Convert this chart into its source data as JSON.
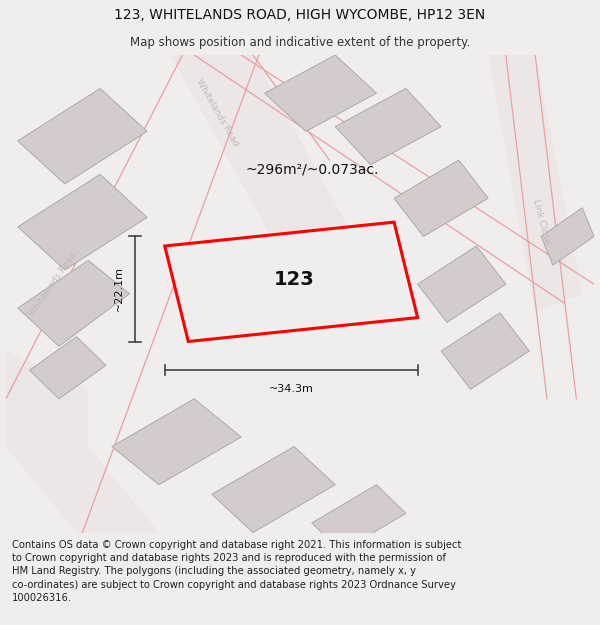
{
  "title": "123, WHITELANDS ROAD, HIGH WYCOMBE, HP12 3EN",
  "subtitle": "Map shows position and indicative extent of the property.",
  "footer_line1": "Contains OS data © Crown copyright and database right 2021. This information is subject",
  "footer_line2": "to Crown copyright and database rights 2023 and is reproduced with the permission of",
  "footer_line3": "HM Land Registry. The polygons (including the associated geometry, namely x, y",
  "footer_line4": "co-ordinates) are subject to Crown copyright and database rights 2023 Ordnance Survey",
  "footer_line5": "100026316.",
  "area_label": "~296m²/~0.073ac.",
  "width_label": "~34.3m",
  "height_label": "~22.1m",
  "plot_number": "123",
  "bg_color": "#f0eded",
  "map_bg": "#ffffff",
  "building_fill": "#d4cccc",
  "building_edge": "#aaaaaa",
  "road_line_color": "#e8a0a0",
  "highlight_color": "#ff0000",
  "dim_line_color": "#444444",
  "road_text_color": "#c0b8b8",
  "title_fontsize": 10,
  "subtitle_fontsize": 8.5,
  "footer_fontsize": 7.2,
  "area_fontsize": 10,
  "plot_label_fontsize": 14
}
